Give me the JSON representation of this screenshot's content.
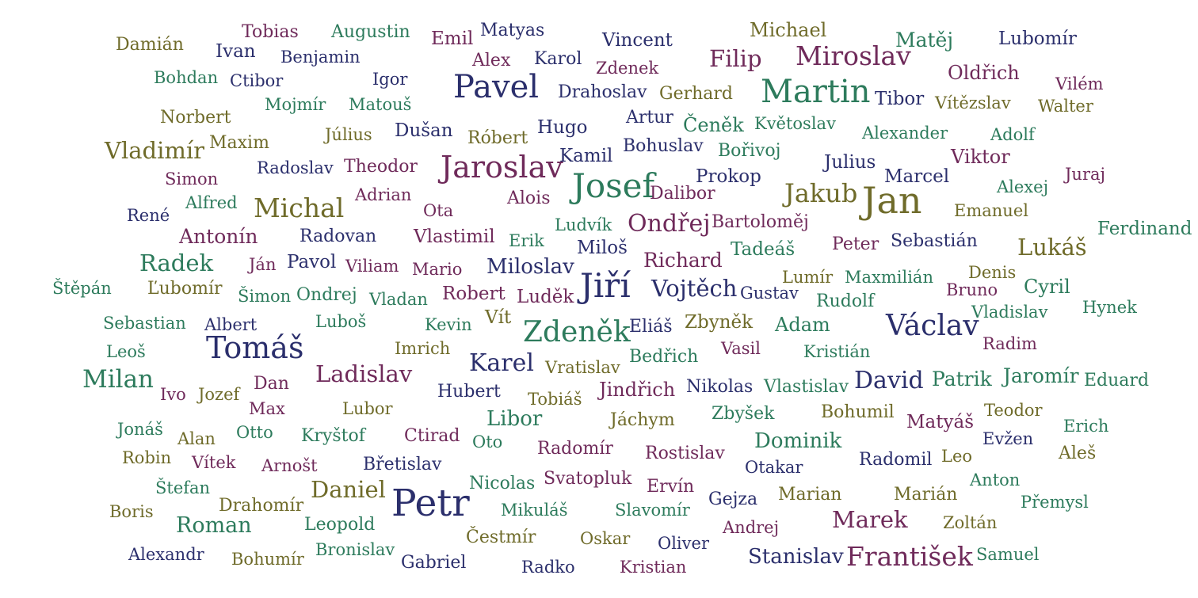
{
  "palette": {
    "g": "#2d7b5c",
    "o": "#6f6b2a",
    "n": "#2b2f6c",
    "p": "#6f2a5a"
  },
  "words": [
    {
      "t": "Tobias",
      "c": "p"
    },
    {
      "t": "Augustin",
      "c": "g"
    },
    {
      "t": "Emil",
      "c": "p"
    },
    {
      "t": "Matyas",
      "c": "n"
    },
    {
      "t": "Vincent",
      "c": "n"
    },
    {
      "t": "Michael",
      "c": "o"
    },
    {
      "t": "Matěj",
      "c": "g"
    },
    {
      "t": "Lubomír",
      "c": "n"
    },
    {
      "t": "Damián",
      "c": "o"
    },
    {
      "t": "Ivan",
      "c": "n"
    },
    {
      "t": "Benjamin",
      "c": "n"
    },
    {
      "t": "Alex",
      "c": "p"
    },
    {
      "t": "Karol",
      "c": "n"
    },
    {
      "t": "Zdenek",
      "c": "p"
    },
    {
      "t": "Filip",
      "c": "p"
    },
    {
      "t": "Miroslav",
      "c": "p"
    },
    {
      "t": "Bohdan",
      "c": "g"
    },
    {
      "t": "Ctibor",
      "c": "n"
    },
    {
      "t": "Igor",
      "c": "n"
    },
    {
      "t": "Oldřich",
      "c": "p"
    },
    {
      "t": "Vilém",
      "c": "p"
    },
    {
      "t": "Pavel",
      "c": "n"
    },
    {
      "t": "Drahoslav",
      "c": "n"
    },
    {
      "t": "Gerhard",
      "c": "o"
    },
    {
      "t": "Martin",
      "c": "g"
    },
    {
      "t": "Tibor",
      "c": "n"
    },
    {
      "t": "Vítězslav",
      "c": "o"
    },
    {
      "t": "Walter",
      "c": "o"
    },
    {
      "t": "Mojmír",
      "c": "g"
    },
    {
      "t": "Matouš",
      "c": "g"
    },
    {
      "t": "Norbert",
      "c": "o"
    },
    {
      "t": "Artur",
      "c": "n"
    },
    {
      "t": "Čeněk",
      "c": "g"
    },
    {
      "t": "Květoslav",
      "c": "g"
    },
    {
      "t": "Hugo",
      "c": "n"
    },
    {
      "t": "Dušan",
      "c": "n"
    },
    {
      "t": "Július",
      "c": "o"
    },
    {
      "t": "Róbert",
      "c": "o"
    },
    {
      "t": "Alexander",
      "c": "g"
    },
    {
      "t": "Adolf",
      "c": "g"
    },
    {
      "t": "Maxim",
      "c": "o"
    },
    {
      "t": "Vladimír",
      "c": "o"
    },
    {
      "t": "Bohuslav",
      "c": "n"
    },
    {
      "t": "Bořivoj",
      "c": "g"
    },
    {
      "t": "Kamil",
      "c": "n"
    },
    {
      "t": "Viktor",
      "c": "p"
    },
    {
      "t": "Julius",
      "c": "n"
    },
    {
      "t": "Jaroslav",
      "c": "p"
    },
    {
      "t": "Theodor",
      "c": "p"
    },
    {
      "t": "Radoslav",
      "c": "n"
    },
    {
      "t": "Simon",
      "c": "p"
    },
    {
      "t": "Prokop",
      "c": "n"
    },
    {
      "t": "Marcel",
      "c": "n"
    },
    {
      "t": "Juraj",
      "c": "p"
    },
    {
      "t": "Josef",
      "c": "g"
    },
    {
      "t": "Alexej",
      "c": "g"
    },
    {
      "t": "Adrian",
      "c": "p"
    },
    {
      "t": "Alois",
      "c": "p"
    },
    {
      "t": "Dalibor",
      "c": "p"
    },
    {
      "t": "Jakub",
      "c": "o"
    },
    {
      "t": "Jan",
      "c": "o"
    },
    {
      "t": "Alfred",
      "c": "g"
    },
    {
      "t": "Michal",
      "c": "o"
    },
    {
      "t": "René",
      "c": "n"
    },
    {
      "t": "Ota",
      "c": "p"
    },
    {
      "t": "Emanuel",
      "c": "o"
    },
    {
      "t": "Ludvík",
      "c": "g"
    },
    {
      "t": "Ondřej",
      "c": "p"
    },
    {
      "t": "Bartoloměj",
      "c": "p"
    },
    {
      "t": "Ferdinand",
      "c": "g"
    },
    {
      "t": "Antonín",
      "c": "p"
    },
    {
      "t": "Radovan",
      "c": "n"
    },
    {
      "t": "Vlastimil",
      "c": "p"
    },
    {
      "t": "Erik",
      "c": "g"
    },
    {
      "t": "Miloš",
      "c": "n"
    },
    {
      "t": "Tadeáš",
      "c": "g"
    },
    {
      "t": "Peter",
      "c": "p"
    },
    {
      "t": "Sebastián",
      "c": "n"
    },
    {
      "t": "Lukáš",
      "c": "o"
    },
    {
      "t": "Radek",
      "c": "g"
    },
    {
      "t": "Ján",
      "c": "p"
    },
    {
      "t": "Pavol",
      "c": "n"
    },
    {
      "t": "Viliam",
      "c": "p"
    },
    {
      "t": "Mario",
      "c": "p"
    },
    {
      "t": "Miloslav",
      "c": "n"
    },
    {
      "t": "Richard",
      "c": "p"
    },
    {
      "t": "Denis",
      "c": "o"
    },
    {
      "t": "Lumír",
      "c": "o"
    },
    {
      "t": "Maxmilián",
      "c": "g"
    },
    {
      "t": "Štěpán",
      "c": "g"
    },
    {
      "t": "Ľubomír",
      "c": "o"
    },
    {
      "t": "Jiří",
      "c": "n"
    },
    {
      "t": "Vojtěch",
      "c": "n"
    },
    {
      "t": "Gustav",
      "c": "n"
    },
    {
      "t": "Bruno",
      "c": "p"
    },
    {
      "t": "Cyril",
      "c": "g"
    },
    {
      "t": "Šimon",
      "c": "g"
    },
    {
      "t": "Ondrej",
      "c": "g"
    },
    {
      "t": "Vladan",
      "c": "g"
    },
    {
      "t": "Robert",
      "c": "p"
    },
    {
      "t": "Luděk",
      "c": "p"
    },
    {
      "t": "Rudolf",
      "c": "g"
    },
    {
      "t": "Sebastian",
      "c": "g"
    },
    {
      "t": "Albert",
      "c": "n"
    },
    {
      "t": "Luboš",
      "c": "g"
    },
    {
      "t": "Kevin",
      "c": "g"
    },
    {
      "t": "Vít",
      "c": "o"
    },
    {
      "t": "Václav",
      "c": "n"
    },
    {
      "t": "Vladislav",
      "c": "g"
    },
    {
      "t": "Hynek",
      "c": "g"
    },
    {
      "t": "Zdeněk",
      "c": "g"
    },
    {
      "t": "Eliáš",
      "c": "n"
    },
    {
      "t": "Zbyněk",
      "c": "o"
    },
    {
      "t": "Adam",
      "c": "g"
    },
    {
      "t": "Leoš",
      "c": "g"
    },
    {
      "t": "Tomáš",
      "c": "n"
    },
    {
      "t": "Imrich",
      "c": "o"
    },
    {
      "t": "Bedřich",
      "c": "g"
    },
    {
      "t": "Vasil",
      "c": "p"
    },
    {
      "t": "Kristián",
      "c": "g"
    },
    {
      "t": "Radim",
      "c": "p"
    },
    {
      "t": "Milan",
      "c": "g"
    },
    {
      "t": "Karel",
      "c": "n"
    },
    {
      "t": "Vratislav",
      "c": "o"
    },
    {
      "t": "Ladislav",
      "c": "p"
    },
    {
      "t": "David",
      "c": "n"
    },
    {
      "t": "Patrik",
      "c": "g"
    },
    {
      "t": "Jaromír",
      "c": "g"
    },
    {
      "t": "Eduard",
      "c": "g"
    },
    {
      "t": "Dan",
      "c": "p"
    },
    {
      "t": "Ivo",
      "c": "p"
    },
    {
      "t": "Jozef",
      "c": "o"
    },
    {
      "t": "Hubert",
      "c": "n"
    },
    {
      "t": "Tobiáš",
      "c": "o"
    },
    {
      "t": "Jindřich",
      "c": "p"
    },
    {
      "t": "Nikolas",
      "c": "n"
    },
    {
      "t": "Vlastislav",
      "c": "g"
    },
    {
      "t": "Max",
      "c": "p"
    },
    {
      "t": "Lubor",
      "c": "o"
    },
    {
      "t": "Libor",
      "c": "g"
    },
    {
      "t": "Jáchym",
      "c": "o"
    },
    {
      "t": "Zbyšek",
      "c": "g"
    },
    {
      "t": "Bohumil",
      "c": "o"
    },
    {
      "t": "Matyáš",
      "c": "p"
    },
    {
      "t": "Teodor",
      "c": "o"
    },
    {
      "t": "Erich",
      "c": "g"
    },
    {
      "t": "Jonáš",
      "c": "g"
    },
    {
      "t": "Alan",
      "c": "o"
    },
    {
      "t": "Otto",
      "c": "g"
    },
    {
      "t": "Kryštof",
      "c": "g"
    },
    {
      "t": "Ctirad",
      "c": "p"
    },
    {
      "t": "Oto",
      "c": "g"
    },
    {
      "t": "Dominik",
      "c": "g"
    },
    {
      "t": "Evžen",
      "c": "n"
    },
    {
      "t": "Robin",
      "c": "o"
    },
    {
      "t": "Vítek",
      "c": "p"
    },
    {
      "t": "Arnošt",
      "c": "p"
    },
    {
      "t": "Břetislav",
      "c": "n"
    },
    {
      "t": "Radomír",
      "c": "p"
    },
    {
      "t": "Rostislav",
      "c": "p"
    },
    {
      "t": "Otakar",
      "c": "n"
    },
    {
      "t": "Radomil",
      "c": "n"
    },
    {
      "t": "Leo",
      "c": "o"
    },
    {
      "t": "Aleš",
      "c": "o"
    },
    {
      "t": "Štefan",
      "c": "g"
    },
    {
      "t": "Daniel",
      "c": "o"
    },
    {
      "t": "Nicolas",
      "c": "g"
    },
    {
      "t": "Svatopluk",
      "c": "p"
    },
    {
      "t": "Ervín",
      "c": "p"
    },
    {
      "t": "Marian",
      "c": "o"
    },
    {
      "t": "Marián",
      "c": "o"
    },
    {
      "t": "Anton",
      "c": "g"
    },
    {
      "t": "Boris",
      "c": "o"
    },
    {
      "t": "Drahomír",
      "c": "o"
    },
    {
      "t": "Petr",
      "c": "n"
    },
    {
      "t": "Mikuláš",
      "c": "g"
    },
    {
      "t": "Slavomír",
      "c": "g"
    },
    {
      "t": "Gejza",
      "c": "n"
    },
    {
      "t": "Přemysl",
      "c": "g"
    },
    {
      "t": "Roman",
      "c": "g"
    },
    {
      "t": "Leopold",
      "c": "g"
    },
    {
      "t": "Andrej",
      "c": "p"
    },
    {
      "t": "Marek",
      "c": "p"
    },
    {
      "t": "Zoltán",
      "c": "o"
    },
    {
      "t": "Čestmír",
      "c": "o"
    },
    {
      "t": "Oskar",
      "c": "o"
    },
    {
      "t": "Oliver",
      "c": "n"
    },
    {
      "t": "Alexandr",
      "c": "n"
    },
    {
      "t": "Bohumír",
      "c": "o"
    },
    {
      "t": "Bronislav",
      "c": "g"
    },
    {
      "t": "Gabriel",
      "c": "n"
    },
    {
      "t": "Radko",
      "c": "n"
    },
    {
      "t": "Kristian",
      "c": "p"
    },
    {
      "t": "Stanislav",
      "c": "n"
    },
    {
      "t": "František",
      "c": "p"
    },
    {
      "t": "Samuel",
      "c": "g"
    }
  ]
}
